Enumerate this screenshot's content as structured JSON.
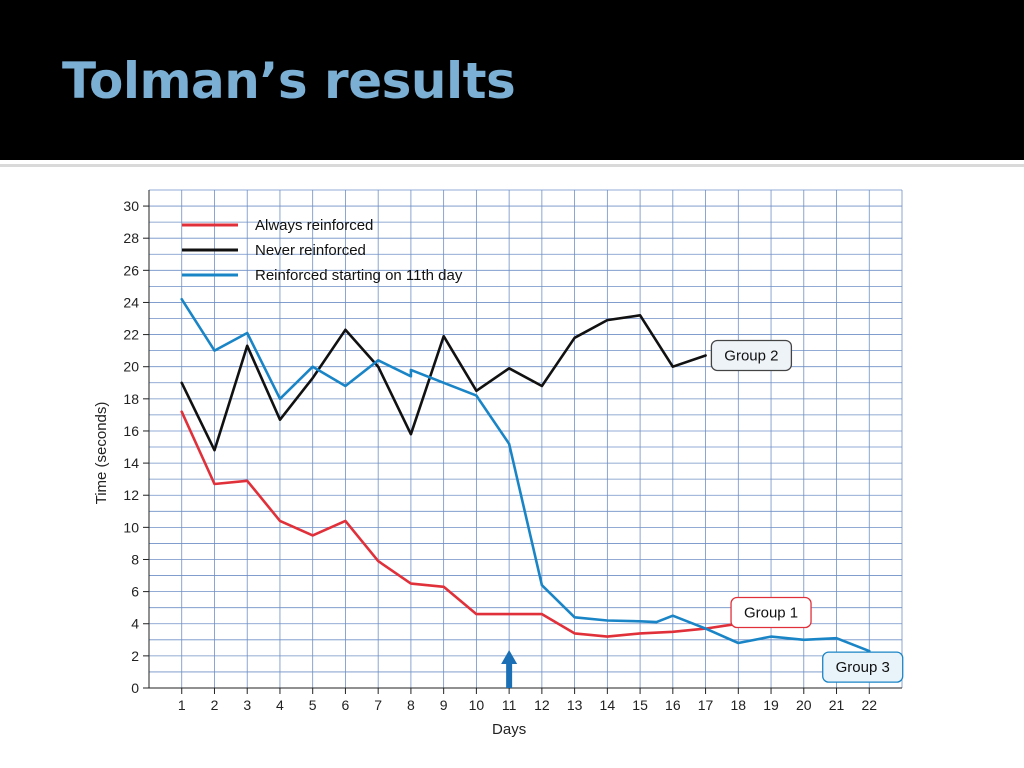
{
  "slide": {
    "title": "Tolman’s results"
  },
  "chart_data": {
    "type": "line",
    "xlabel": "Days",
    "ylabel": "Time (seconds)",
    "x": [
      1,
      2,
      3,
      4,
      5,
      6,
      7,
      8,
      9,
      10,
      11,
      12,
      13,
      14,
      15,
      16,
      17,
      18,
      19,
      20,
      21,
      22
    ],
    "xlim": [
      0,
      23
    ],
    "ylim": [
      0,
      31
    ],
    "yticks": [
      0,
      2,
      4,
      6,
      8,
      10,
      12,
      14,
      16,
      18,
      20,
      22,
      24,
      26,
      28,
      30
    ],
    "grid": true,
    "legend_position": "top-left",
    "series": [
      {
        "name": "Always reinforced",
        "color": "#e0303a",
        "points": [
          [
            1,
            17.2
          ],
          [
            2,
            12.7
          ],
          [
            3,
            12.9
          ],
          [
            4,
            10.4
          ],
          [
            5,
            9.5
          ],
          [
            6,
            10.4
          ],
          [
            7,
            7.9
          ],
          [
            8,
            6.5
          ],
          [
            9,
            6.3
          ],
          [
            10,
            4.6
          ],
          [
            11,
            4.6
          ],
          [
            12,
            4.6
          ],
          [
            13,
            3.4
          ],
          [
            14,
            3.2
          ],
          [
            15,
            3.4
          ],
          [
            16,
            3.5
          ],
          [
            17,
            3.7
          ],
          [
            18,
            4.0
          ]
        ]
      },
      {
        "name": "Never reinforced",
        "color": "#111111",
        "points": [
          [
            1,
            19.0
          ],
          [
            2,
            14.8
          ],
          [
            3,
            21.3
          ],
          [
            4,
            16.7
          ],
          [
            5,
            19.3
          ],
          [
            6,
            22.3
          ],
          [
            7,
            20.0
          ],
          [
            8,
            15.8
          ],
          [
            9,
            21.9
          ],
          [
            10,
            18.5
          ],
          [
            11,
            19.9
          ],
          [
            12,
            18.8
          ],
          [
            13,
            21.8
          ],
          [
            14,
            22.9
          ],
          [
            15,
            23.2
          ],
          [
            16,
            20.0
          ],
          [
            17,
            20.7
          ]
        ]
      },
      {
        "name": "Reinforced starting on 11th day",
        "color": "#1a85c6",
        "points": [
          [
            1,
            24.2
          ],
          [
            2,
            21.0
          ],
          [
            3,
            22.1
          ],
          [
            4,
            18.0
          ],
          [
            5,
            20.0
          ],
          [
            6,
            18.8
          ],
          [
            7,
            20.4
          ],
          [
            8,
            19.4
          ],
          [
            8,
            19.8
          ],
          [
            9,
            19.0
          ],
          [
            10,
            18.2
          ],
          [
            11,
            15.2
          ],
          [
            12,
            6.4
          ],
          [
            13,
            4.4
          ],
          [
            14,
            4.2
          ],
          [
            15,
            4.15
          ],
          [
            15.5,
            4.1
          ],
          [
            16,
            4.5
          ],
          [
            17,
            3.7
          ],
          [
            18,
            2.8
          ],
          [
            19,
            3.2
          ],
          [
            20,
            3.0
          ],
          [
            21,
            3.1
          ],
          [
            22,
            2.3
          ]
        ]
      }
    ],
    "annotations": [
      {
        "label": "Group 2",
        "x": 18.4,
        "y": 20.7,
        "border": "#444444",
        "fill": "#eef3f8",
        "series": "Never reinforced"
      },
      {
        "label": "Group 1",
        "x": 19.0,
        "y": 4.7,
        "border": "#e0303a",
        "fill": "#ffffff",
        "series": "Always reinforced"
      },
      {
        "label": "Group 3",
        "x": 21.8,
        "y": 1.3,
        "border": "#1a85c6",
        "fill": "#e8f3fa",
        "series": "Reinforced starting on 11th day"
      }
    ],
    "marker": {
      "type": "arrow",
      "x": 11,
      "color": "#1a6fb5"
    }
  },
  "colors": {
    "grid": "#6f8fc6",
    "axis": "#222222",
    "title": "#7bafd4"
  }
}
